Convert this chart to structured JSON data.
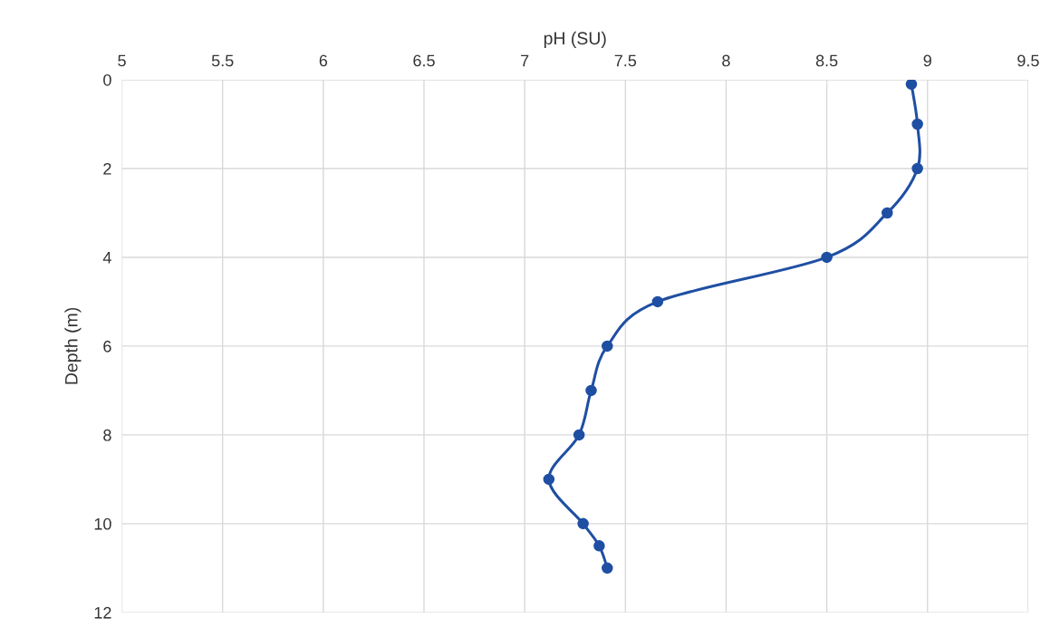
{
  "chart_data": {
    "type": "line",
    "xlabel": "pH (SU)",
    "ylabel": "Depth (m)",
    "xlim": [
      5,
      9.5
    ],
    "xticks": [
      5,
      5.5,
      6,
      6.5,
      7,
      7.5,
      8,
      8.5,
      9,
      9.5
    ],
    "ylim": [
      12,
      0
    ],
    "yticks": [
      0,
      2,
      4,
      6,
      8,
      10,
      12
    ],
    "grid": true,
    "marker": "circle",
    "line_style": "solid",
    "legend": false,
    "series": [
      {
        "color": "#1f4fa3",
        "x": [
          8.92,
          8.95,
          8.95,
          8.8,
          8.5,
          7.66,
          7.41,
          7.33,
          7.27,
          7.12,
          7.29,
          7.37,
          7.41
        ],
        "values": [
          0.1,
          1,
          2,
          3,
          4,
          5,
          6,
          7,
          8,
          9,
          10,
          10.5,
          11
        ]
      }
    ]
  }
}
